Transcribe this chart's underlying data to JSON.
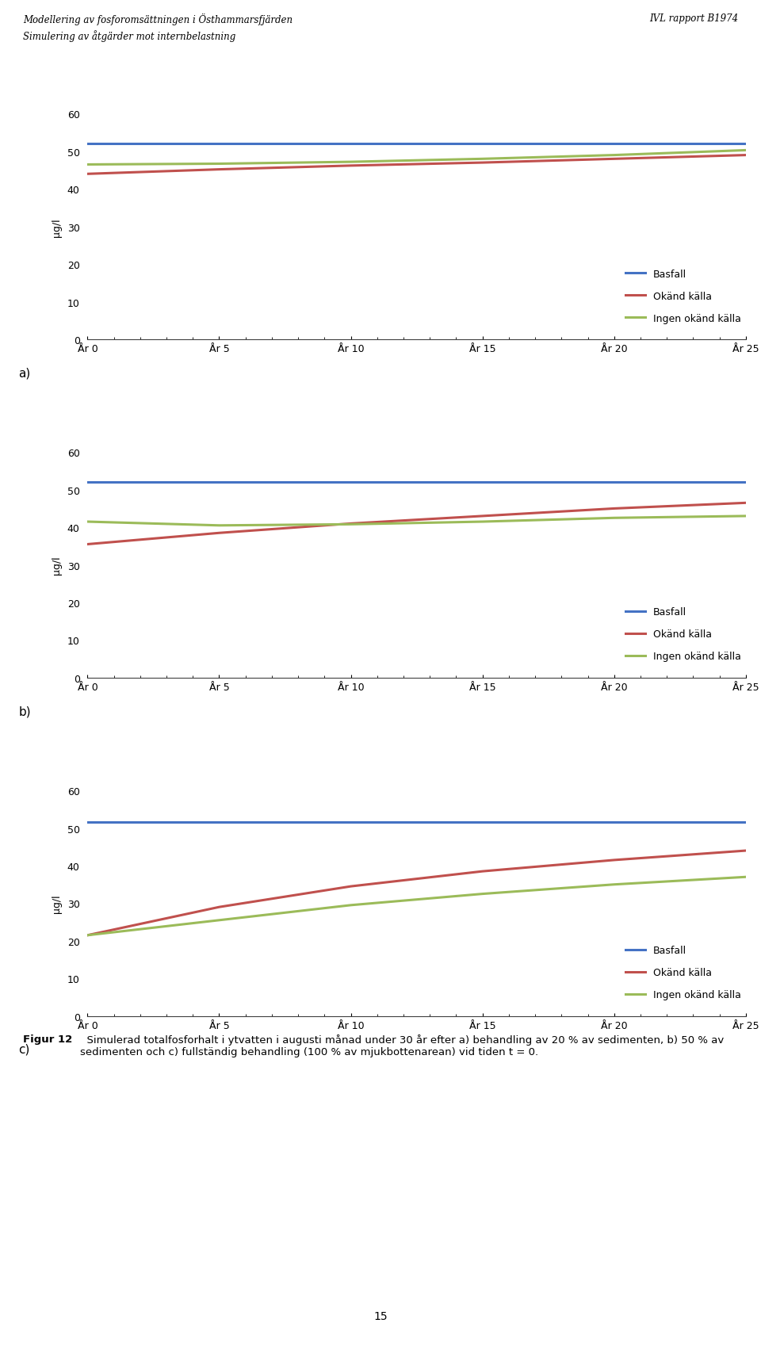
{
  "header_left": "Modellering av fosforomsättningen i Östhammarsfjärden\nSimulering av åtgärder mot internbelastning",
  "header_right": "IVL rapport B1974",
  "page_number": "15",
  "caption_bold": "Figur 12",
  "caption_normal": "  Simulerad totalfosforhalt i ytvatten i augusti månad under 30 år efter a) behandling av 20 % av sedimenten, b) 50 % av sedimenten och c) fullständig behandling (100 % av mjukbottenarean) vid tiden t = 0.",
  "x_years": [
    0,
    5,
    10,
    15,
    20,
    25
  ],
  "xlabel_ticks": [
    "År 0",
    "År 5",
    "År 10",
    "År 15",
    "År 20",
    "År 25"
  ],
  "x_tick_vals": [
    0,
    5,
    10,
    15,
    20,
    25
  ],
  "xlim": [
    0,
    25
  ],
  "ylim": [
    0,
    60
  ],
  "yticks": [
    0,
    10,
    20,
    30,
    40,
    50,
    60
  ],
  "ylabel": "µg/l",
  "panel_labels": [
    "a)",
    "b)",
    "c)"
  ],
  "legend_labels": [
    "Basfall",
    "Okänd källa",
    "Ingen okänd källa"
  ],
  "line_colors": [
    "#4472C4",
    "#C0504D",
    "#9BBB59"
  ],
  "panel_a": {
    "basfall": [
      52,
      52,
      52,
      52,
      52,
      52
    ],
    "okand": [
      44,
      45.2,
      46.2,
      47.0,
      48.0,
      49.0
    ],
    "ingen_okand": [
      46.5,
      46.7,
      47.2,
      48.0,
      49.0,
      50.3
    ]
  },
  "panel_b": {
    "basfall": [
      52,
      52,
      52,
      52,
      52,
      52
    ],
    "okand": [
      35.5,
      38.5,
      41.0,
      43.0,
      45.0,
      46.5
    ],
    "ingen_okand": [
      41.5,
      40.5,
      40.8,
      41.5,
      42.5,
      43.0
    ]
  },
  "panel_c": {
    "basfall": [
      51.5,
      51.5,
      51.5,
      51.5,
      51.5,
      51.5
    ],
    "okand": [
      21.5,
      29.0,
      34.5,
      38.5,
      41.5,
      44.0
    ],
    "ingen_okand": [
      21.5,
      25.5,
      29.5,
      32.5,
      35.0,
      37.0
    ]
  }
}
